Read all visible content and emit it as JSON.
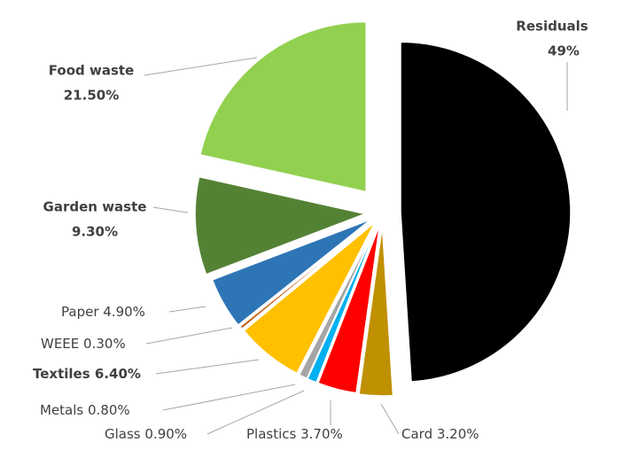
{
  "chart_data": {
    "type": "pie",
    "categories": [
      "Residuals",
      "Card",
      "Plastics",
      "Glass",
      "Metals",
      "Textiles",
      "WEEE",
      "Paper",
      "Garden waste",
      "Food waste"
    ],
    "values": [
      49,
      3.2,
      3.7,
      0.9,
      0.8,
      6.4,
      0.3,
      4.9,
      9.3,
      21.5
    ],
    "value_labels": [
      "49%",
      "3.20%",
      "3.70%",
      "0.90%",
      "0.80%",
      "6.40%",
      "0.30%",
      "4.90%",
      "9.30%",
      "21.50%"
    ],
    "colors": [
      "#000000",
      "#bf9000",
      "#ff0000",
      "#00b0f0",
      "#a5a5a5",
      "#ffc000",
      "#c55a11",
      "#2e75b6",
      "#548235",
      "#92d050"
    ]
  }
}
